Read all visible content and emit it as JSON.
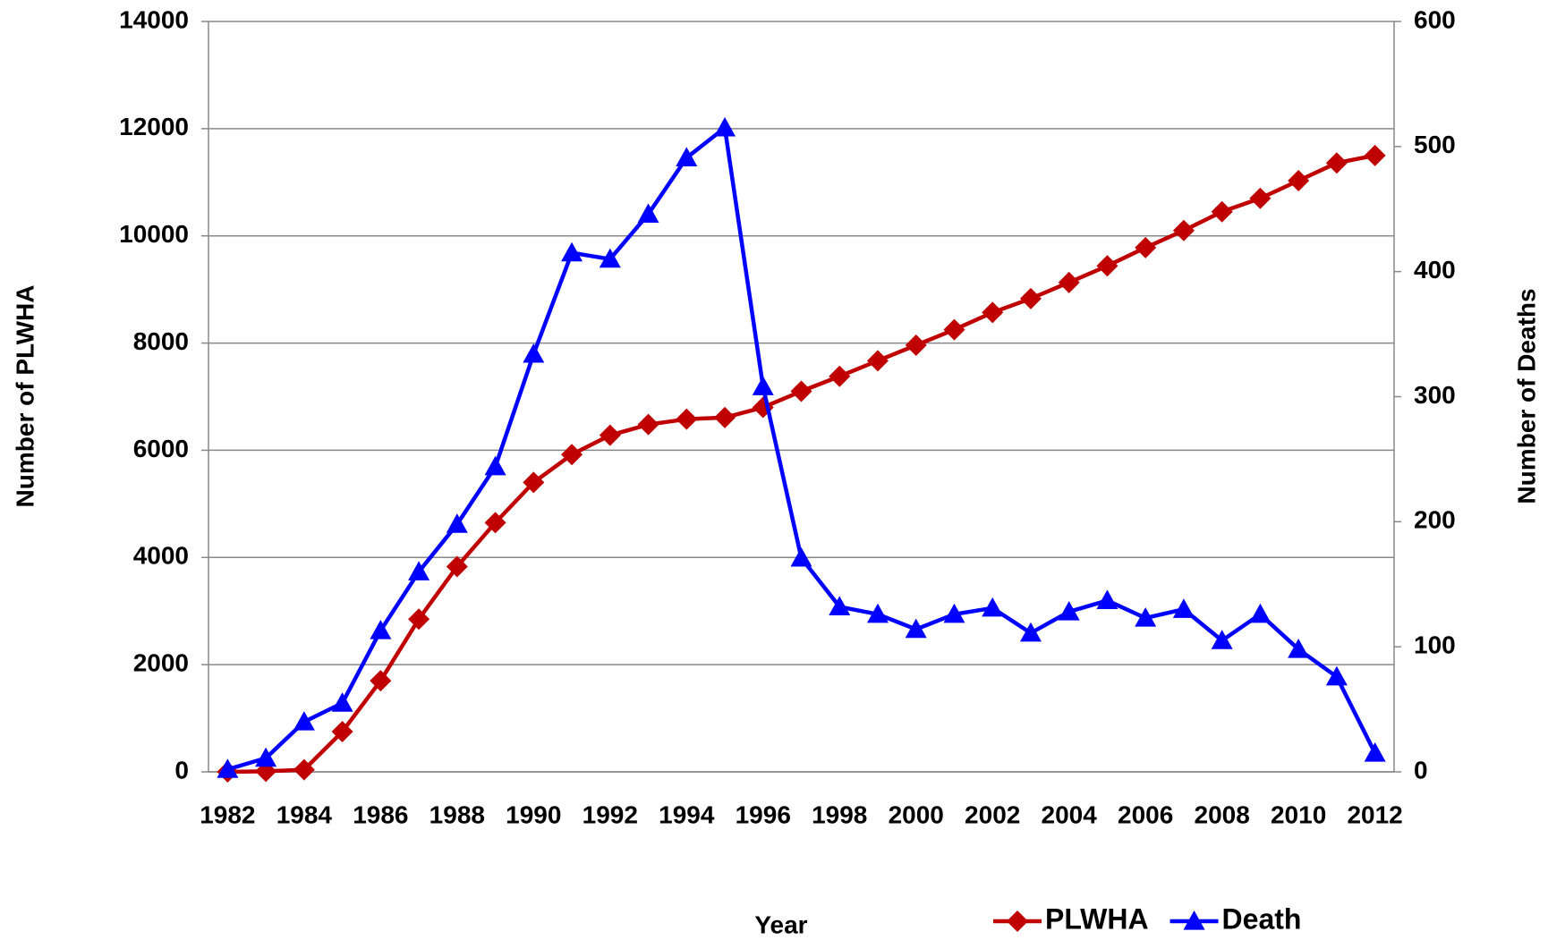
{
  "chart_data": {
    "type": "line",
    "x_label": "Year",
    "y_label": "Number of  PLWHA",
    "y2_label": "Number of Deaths",
    "categories": [
      "1982",
      null,
      "1984",
      null,
      "1986",
      null,
      "1988",
      null,
      "1990",
      null,
      "1992",
      null,
      "1994",
      null,
      "1996",
      null,
      "1998",
      null,
      "2000",
      null,
      "2002",
      null,
      "2004",
      null,
      "2006",
      null,
      "2008",
      null,
      "2010",
      null,
      "2012"
    ],
    "series": [
      {
        "name": "PLWHA",
        "color": "#c00000",
        "marker": "diamond",
        "values": [
          0,
          10,
          40,
          750,
          1700,
          2850,
          3830,
          4650,
          5400,
          5920,
          6280,
          6480,
          6580,
          6610,
          6800,
          7100,
          7380,
          7670,
          7960,
          8250,
          8570,
          8830,
          9130,
          9440,
          9780,
          10100,
          10450,
          10700,
          11030,
          11360,
          11500
        ]
      },
      {
        "name": "Death",
        "color": "#0000ff",
        "marker": "triangle",
        "axis": "y2",
        "values": [
          2,
          11,
          40,
          55,
          113,
          160,
          198,
          244,
          334,
          415,
          410,
          446,
          491,
          515,
          308,
          171,
          132,
          126,
          114,
          126,
          131,
          111,
          128,
          137,
          123,
          130,
          105,
          126,
          98,
          76,
          15
        ]
      }
    ],
    "ylim": [
      0,
      14000
    ],
    "yticks": [
      0,
      2000,
      4000,
      6000,
      8000,
      10000,
      12000,
      14000
    ],
    "y2lim": [
      0,
      600
    ],
    "y2ticks": [
      0,
      100,
      200,
      300,
      400,
      500,
      600
    ],
    "grid": true,
    "legend": "bottom-right"
  }
}
